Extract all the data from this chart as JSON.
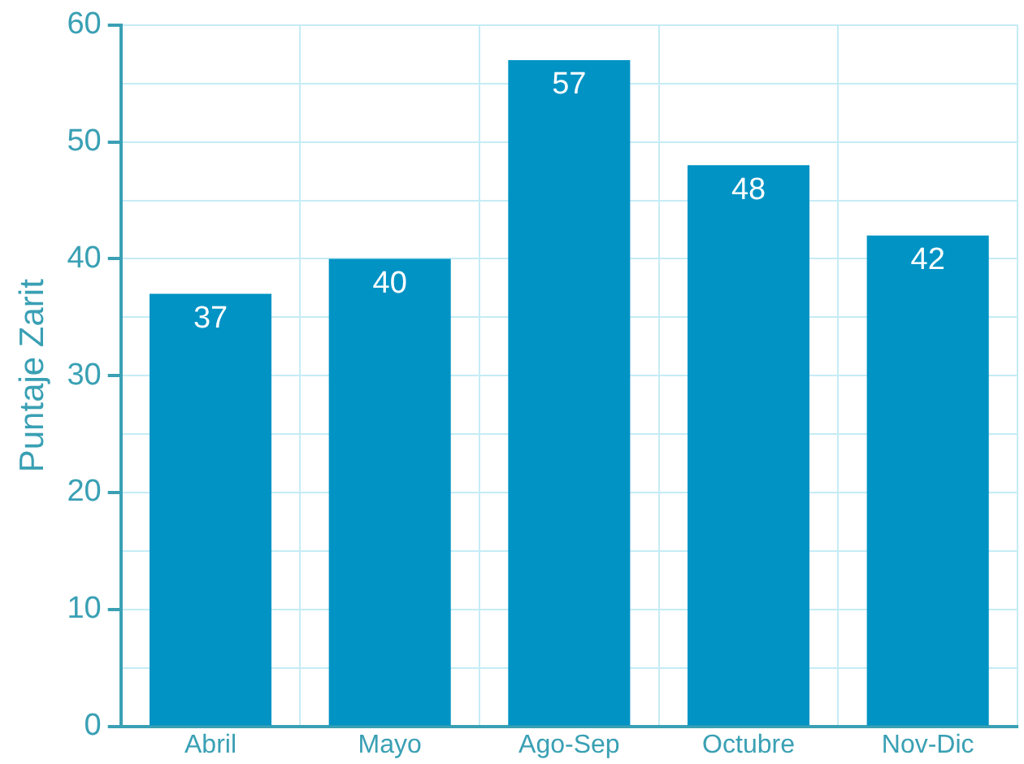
{
  "chart_data": {
    "type": "bar",
    "ylabel": "Puntaje Zarit",
    "categories": [
      "Abril",
      "Mayo",
      "Ago-Sep",
      "Octubre",
      "Nov-Dic"
    ],
    "values": [
      37,
      40,
      57,
      48,
      42
    ],
    "color": "#0093c4",
    "ylim": [
      0,
      60
    ],
    "yticks": [
      0,
      {
        "value": 5,
        "label": null
      },
      10,
      {
        "value": 15,
        "label": null
      },
      20,
      {
        "value": 25,
        "label": null
      },
      30,
      {
        "value": 35,
        "label": null
      },
      40,
      {
        "value": 45,
        "label": null
      },
      50,
      {
        "value": 55,
        "label": null
      },
      60
    ],
    "grid": true,
    "data_labels": true
  }
}
